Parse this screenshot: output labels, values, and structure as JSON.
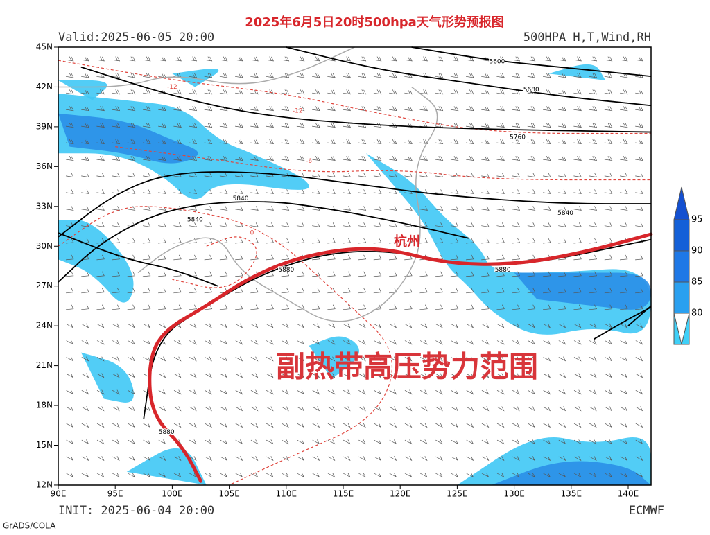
{
  "header": {
    "title": "2025年6月5日20时500hpa天气形势预报图",
    "valid": "Valid:2025-06-05 20:00",
    "product": "500HPA H,T,Wind,RH"
  },
  "footer": {
    "init": "INIT: 2025-06-04 20:00",
    "model": "ECMWF",
    "software": "GrADS/COLA"
  },
  "axes": {
    "lat_labels": [
      "45N",
      "42N",
      "39N",
      "36N",
      "33N",
      "30N",
      "27N",
      "24N",
      "21N",
      "18N",
      "15N",
      "12N"
    ],
    "lon_labels": [
      "90E",
      "95E",
      "100E",
      "105E",
      "110E",
      "115E",
      "120E",
      "125E",
      "130E",
      "135E",
      "140E"
    ]
  },
  "colorbar": {
    "labels": [
      "95",
      "90",
      "85",
      "80"
    ]
  },
  "contour_labels": [
    "5600",
    "5680",
    "5760",
    "5840",
    "5840",
    "5840",
    "5880",
    "5880",
    "5880",
    "-12",
    "-12",
    "-6",
    "0"
  ],
  "annotations": {
    "city": "杭州",
    "region": "副热带高压势力范围"
  }
}
